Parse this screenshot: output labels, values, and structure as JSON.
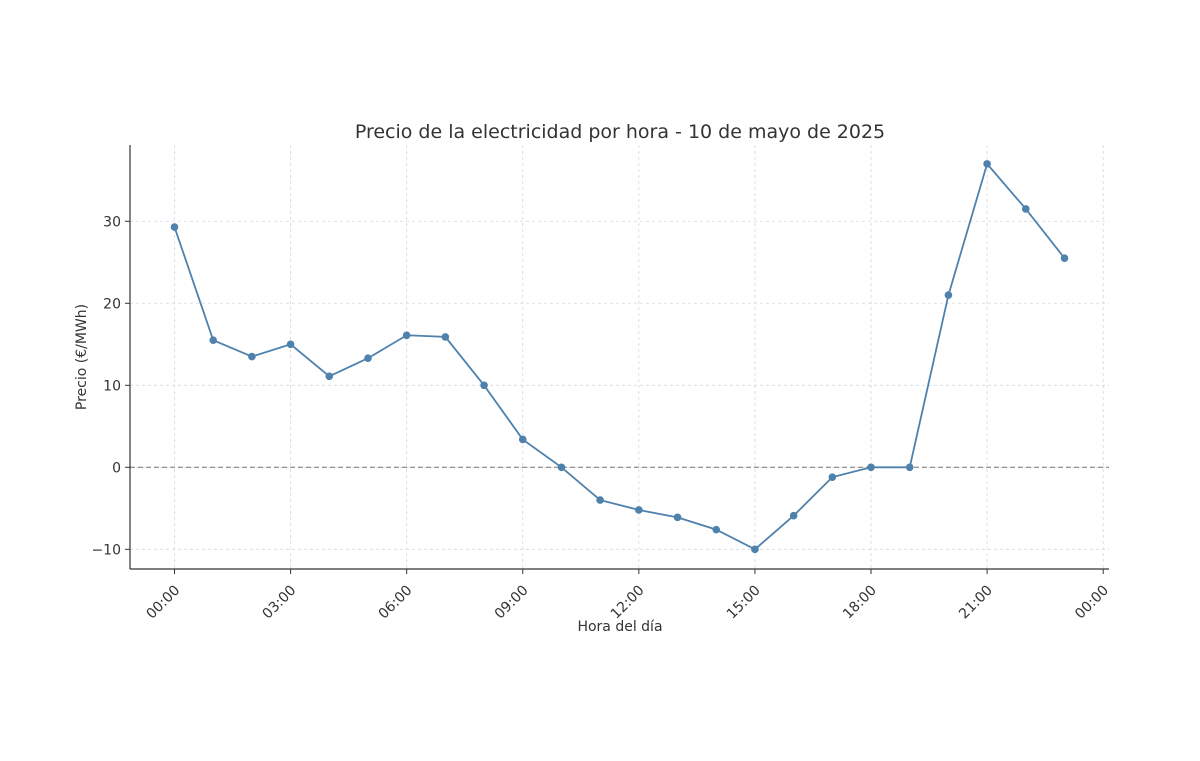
{
  "chart_data": {
    "type": "line",
    "title": "Precio de la electricidad por hora - 10 de mayo de 2025",
    "xlabel": "Hora del día",
    "ylabel": "Precio (€/MWh)",
    "x_hours": [
      0,
      1,
      2,
      3,
      4,
      5,
      6,
      7,
      8,
      9,
      10,
      11,
      12,
      13,
      14,
      15,
      16,
      17,
      18,
      19,
      20,
      21,
      22,
      23
    ],
    "series": [
      {
        "name": "Precio",
        "color": "#4f81ad",
        "values": [
          29.3,
          15.5,
          13.5,
          15.0,
          11.1,
          13.3,
          16.1,
          15.9,
          10.0,
          3.4,
          0.0,
          -4.0,
          -5.2,
          -6.1,
          -7.6,
          -10.0,
          -5.9,
          -1.2,
          0.0,
          0.0,
          21.0,
          37.0,
          31.5,
          25.5
        ]
      }
    ],
    "xlim": [
      -1.15,
      24.15
    ],
    "ylim": [
      -12.4,
      39.3
    ],
    "xticks": [
      0,
      3,
      6,
      9,
      12,
      15,
      18,
      21,
      24
    ],
    "xtick_labels": [
      "00:00",
      "03:00",
      "06:00",
      "09:00",
      "12:00",
      "15:00",
      "18:00",
      "21:00",
      "00:00"
    ],
    "yticks": [
      -10,
      0,
      10,
      20,
      30
    ],
    "ytick_labels": [
      "−10",
      "0",
      "10",
      "20",
      "30"
    ],
    "reference_line": {
      "y": 0,
      "style": "dashed",
      "color": "#777777"
    },
    "grid": true
  }
}
